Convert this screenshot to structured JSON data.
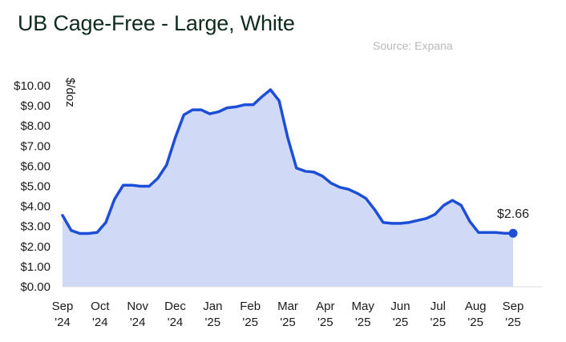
{
  "title": "UB Cage-Free  - Large, White",
  "source": "Source: Expana",
  "chart_data": {
    "type": "area",
    "title": "UB Cage-Free  - Large, White",
    "ylabel": "$/doz",
    "ylim": [
      0,
      10
    ],
    "y_ticks": [
      "$0.00",
      "$1.00",
      "$2.00",
      "$3.00",
      "$4.00",
      "$5.00",
      "$6.00",
      "$7.00",
      "$8.00",
      "$9.00",
      "$10.00"
    ],
    "x_ticks": [
      {
        "month": "Sep",
        "year": "'24"
      },
      {
        "month": "Oct",
        "year": "'24"
      },
      {
        "month": "Nov",
        "year": "'24"
      },
      {
        "month": "Dec",
        "year": "'24"
      },
      {
        "month": "Jan",
        "year": "'25"
      },
      {
        "month": "Feb",
        "year": "'25"
      },
      {
        "month": "Mar",
        "year": "'25"
      },
      {
        "month": "Apr",
        "year": "'25"
      },
      {
        "month": "May",
        "year": "'25"
      },
      {
        "month": "Jun",
        "year": "'25"
      },
      {
        "month": "Jul",
        "year": "'25"
      },
      {
        "month": "Aug",
        "year": "'25"
      },
      {
        "month": "Sep",
        "year": "'25"
      }
    ],
    "series": [
      {
        "values": [
          3.55,
          2.8,
          2.65,
          2.65,
          2.7,
          3.2,
          4.35,
          5.05,
          5.05,
          5.0,
          5.0,
          5.4,
          6.05,
          7.4,
          8.55,
          8.8,
          8.8,
          8.6,
          8.7,
          8.9,
          8.95,
          9.05,
          9.05,
          9.45,
          9.8,
          9.25,
          7.4,
          5.9,
          5.75,
          5.7,
          5.5,
          5.15,
          4.95,
          4.85,
          4.65,
          4.4,
          3.85,
          3.2,
          3.15,
          3.15,
          3.2,
          3.3,
          3.4,
          3.6,
          4.05,
          4.3,
          4.05,
          3.25,
          2.7,
          2.7,
          2.7,
          2.66,
          2.66
        ]
      }
    ],
    "last_label": "$2.66",
    "grid": false,
    "colors": {
      "line": "#1d4ed8",
      "fill": "#d0daf7",
      "title": "#0f2b1e",
      "source": "#b9b9b9"
    }
  }
}
